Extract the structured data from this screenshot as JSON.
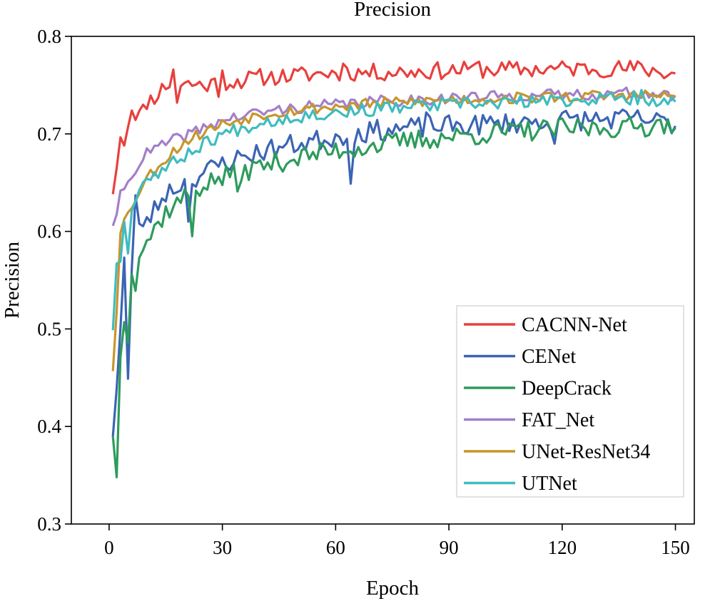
{
  "chart_data": {
    "type": "line",
    "title": "Precision",
    "xlabel": "Epoch",
    "ylabel": "Precision",
    "xlim": [
      -10,
      155
    ],
    "ylim": [
      0.3,
      0.8
    ],
    "xticks": [
      0,
      30,
      60,
      90,
      120,
      150
    ],
    "xtick_labels": [
      "0",
      "30",
      "60",
      "90",
      "120",
      "150"
    ],
    "yticks": [
      0.3,
      0.4,
      0.5,
      0.6,
      0.7,
      0.8
    ],
    "ytick_labels": [
      "0.3",
      "0.4",
      "0.5",
      "0.6",
      "0.7",
      "0.8"
    ],
    "grid": false,
    "legend_position": "bottom-right",
    "epochs": {
      "start": 1,
      "end": 150
    },
    "series": [
      {
        "name": "CACNN-Net",
        "color": "#e8403d",
        "keypoints": [
          [
            1,
            0.64
          ],
          [
            2,
            0.665
          ],
          [
            3,
            0.698
          ],
          [
            5,
            0.708
          ],
          [
            8,
            0.722
          ],
          [
            10,
            0.733
          ],
          [
            12,
            0.738
          ],
          [
            15,
            0.75
          ],
          [
            20,
            0.752
          ],
          [
            25,
            0.75
          ],
          [
            30,
            0.753
          ],
          [
            35,
            0.755
          ],
          [
            40,
            0.758
          ],
          [
            50,
            0.76
          ],
          [
            60,
            0.763
          ],
          [
            70,
            0.763
          ],
          [
            80,
            0.764
          ],
          [
            90,
            0.765
          ],
          [
            100,
            0.766
          ],
          [
            110,
            0.766
          ],
          [
            120,
            0.767
          ],
          [
            130,
            0.767
          ],
          [
            140,
            0.767
          ],
          [
            150,
            0.762
          ]
        ],
        "noise": 0.009,
        "spikes": [
          [
            2,
            0.665
          ],
          [
            4,
            0.688
          ],
          [
            6,
            0.724
          ],
          [
            17,
            0.766
          ],
          [
            18,
            0.732
          ],
          [
            29,
            0.738
          ],
          [
            30,
            0.765
          ],
          [
            62,
            0.772
          ],
          [
            98,
            0.774
          ]
        ],
        "seed": 11
      },
      {
        "name": "CENet",
        "color": "#3b64b4",
        "keypoints": [
          [
            1,
            0.392
          ],
          [
            2,
            0.44
          ],
          [
            3,
            0.5
          ],
          [
            4,
            0.573
          ],
          [
            5,
            0.46
          ],
          [
            6,
            0.56
          ],
          [
            7,
            0.6
          ],
          [
            8,
            0.605
          ],
          [
            10,
            0.61
          ],
          [
            15,
            0.64
          ],
          [
            20,
            0.65
          ],
          [
            25,
            0.66
          ],
          [
            30,
            0.67
          ],
          [
            40,
            0.682
          ],
          [
            50,
            0.69
          ],
          [
            60,
            0.697
          ],
          [
            70,
            0.703
          ],
          [
            80,
            0.706
          ],
          [
            90,
            0.708
          ],
          [
            100,
            0.71
          ],
          [
            110,
            0.712
          ],
          [
            120,
            0.714
          ],
          [
            130,
            0.715
          ],
          [
            140,
            0.715
          ],
          [
            150,
            0.71
          ]
        ],
        "noise": 0.011,
        "spikes": [
          [
            5,
            0.449
          ],
          [
            7,
            0.637
          ],
          [
            21,
            0.61
          ],
          [
            64,
            0.649
          ],
          [
            84,
            0.722
          ],
          [
            118,
            0.69
          ]
        ],
        "seed": 23
      },
      {
        "name": "DeepCrack",
        "color": "#2e9b5c",
        "keypoints": [
          [
            1,
            0.392
          ],
          [
            2,
            0.348
          ],
          [
            3,
            0.47
          ],
          [
            4,
            0.51
          ],
          [
            5,
            0.49
          ],
          [
            6,
            0.56
          ],
          [
            7,
            0.54
          ],
          [
            8,
            0.575
          ],
          [
            10,
            0.59
          ],
          [
            15,
            0.62
          ],
          [
            20,
            0.635
          ],
          [
            25,
            0.648
          ],
          [
            30,
            0.655
          ],
          [
            40,
            0.667
          ],
          [
            50,
            0.676
          ],
          [
            60,
            0.683
          ],
          [
            70,
            0.688
          ],
          [
            80,
            0.693
          ],
          [
            90,
            0.697
          ],
          [
            100,
            0.7
          ],
          [
            110,
            0.703
          ],
          [
            120,
            0.705
          ],
          [
            130,
            0.706
          ],
          [
            140,
            0.707
          ],
          [
            150,
            0.712
          ]
        ],
        "noise": 0.011,
        "spikes": [
          [
            2,
            0.348
          ],
          [
            7,
            0.539
          ],
          [
            22,
            0.595
          ],
          [
            34,
            0.641
          ],
          [
            148,
            0.715
          ]
        ],
        "seed": 37
      },
      {
        "name": "FAT_Net",
        "color": "#a37fc9",
        "keypoints": [
          [
            1,
            0.607
          ],
          [
            2,
            0.615
          ],
          [
            3,
            0.64
          ],
          [
            5,
            0.65
          ],
          [
            8,
            0.668
          ],
          [
            10,
            0.68
          ],
          [
            15,
            0.69
          ],
          [
            20,
            0.698
          ],
          [
            25,
            0.706
          ],
          [
            30,
            0.714
          ],
          [
            40,
            0.722
          ],
          [
            50,
            0.727
          ],
          [
            60,
            0.73
          ],
          [
            70,
            0.733
          ],
          [
            80,
            0.735
          ],
          [
            90,
            0.737
          ],
          [
            100,
            0.738
          ],
          [
            110,
            0.739
          ],
          [
            120,
            0.74
          ],
          [
            130,
            0.741
          ],
          [
            140,
            0.742
          ],
          [
            150,
            0.738
          ]
        ],
        "noise": 0.006,
        "spikes": [],
        "seed": 41
      },
      {
        "name": "UNet-ResNet34",
        "color": "#c7962c",
        "keypoints": [
          [
            1,
            0.458
          ],
          [
            2,
            0.52
          ],
          [
            3,
            0.6
          ],
          [
            4,
            0.612
          ],
          [
            6,
            0.625
          ],
          [
            8,
            0.64
          ],
          [
            10,
            0.655
          ],
          [
            15,
            0.675
          ],
          [
            20,
            0.692
          ],
          [
            25,
            0.702
          ],
          [
            30,
            0.71
          ],
          [
            40,
            0.72
          ],
          [
            50,
            0.725
          ],
          [
            60,
            0.728
          ],
          [
            70,
            0.731
          ],
          [
            80,
            0.733
          ],
          [
            90,
            0.735
          ],
          [
            100,
            0.736
          ],
          [
            110,
            0.737
          ],
          [
            120,
            0.738
          ],
          [
            130,
            0.739
          ],
          [
            140,
            0.74
          ],
          [
            150,
            0.738
          ]
        ],
        "noise": 0.006,
        "spikes": [],
        "seed": 53
      },
      {
        "name": "UTNet",
        "color": "#3fbcbf",
        "keypoints": [
          [
            1,
            0.5
          ],
          [
            2,
            0.568
          ],
          [
            3,
            0.568
          ],
          [
            4,
            0.612
          ],
          [
            5,
            0.58
          ],
          [
            6,
            0.62
          ],
          [
            8,
            0.645
          ],
          [
            10,
            0.655
          ],
          [
            15,
            0.665
          ],
          [
            20,
            0.678
          ],
          [
            25,
            0.69
          ],
          [
            30,
            0.7
          ],
          [
            40,
            0.712
          ],
          [
            50,
            0.718
          ],
          [
            60,
            0.722
          ],
          [
            70,
            0.725
          ],
          [
            80,
            0.728
          ],
          [
            90,
            0.73
          ],
          [
            100,
            0.731
          ],
          [
            110,
            0.733
          ],
          [
            120,
            0.734
          ],
          [
            130,
            0.736
          ],
          [
            140,
            0.737
          ],
          [
            150,
            0.732
          ]
        ],
        "noise": 0.007,
        "spikes": [
          [
            141,
            0.745
          ]
        ],
        "seed": 67
      }
    ]
  }
}
